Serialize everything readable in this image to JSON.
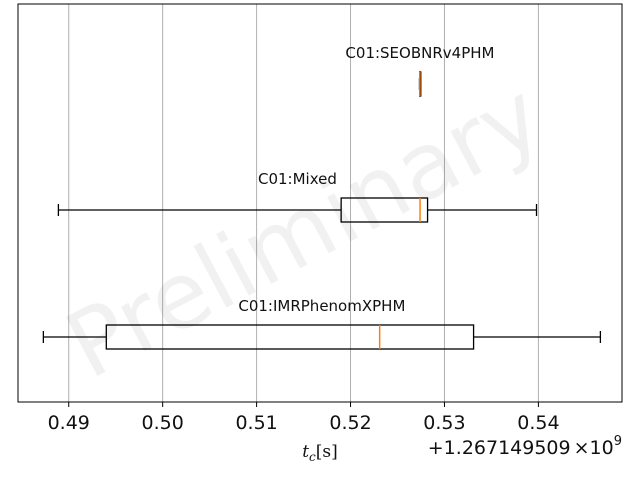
{
  "watermark": "Preliminary",
  "colors": {
    "grid": "#b0b0b0",
    "axes": "#000000",
    "box": "#000000",
    "median": "#ff7f0e",
    "background": "#ffffff"
  },
  "chart_data": {
    "type": "boxplot",
    "orientation": "horizontal",
    "xlabel_base": "t",
    "xlabel_sub": "c",
    "xlabel_unit": "[s]",
    "xlim": [
      0.4846,
      0.5489
    ],
    "xticks": [
      0.49,
      0.5,
      0.51,
      0.52,
      0.53,
      0.54
    ],
    "xtick_labels": [
      "0.49",
      "0.50",
      "0.51",
      "0.52",
      "0.53",
      "0.54"
    ],
    "offset_text": "+1.267149509",
    "offset_multiplier": "×10",
    "offset_exponent": "9",
    "grid": "vertical",
    "series": [
      {
        "name": "C01:SEOBNRv4PHM",
        "whisker_low": 0.52734,
        "q1": 0.52737,
        "median": 0.52738,
        "q3": 0.52741,
        "whisker_high": 0.52744
      },
      {
        "name": "C01:Mixed",
        "whisker_low": 0.4889,
        "q1": 0.519,
        "median": 0.5274,
        "q3": 0.5282,
        "whisker_high": 0.5398
      },
      {
        "name": "C01:IMRPhenomXPHM",
        "whisker_low": 0.4873,
        "q1": 0.494,
        "median": 0.5231,
        "q3": 0.5331,
        "whisker_high": 0.5466
      }
    ]
  }
}
